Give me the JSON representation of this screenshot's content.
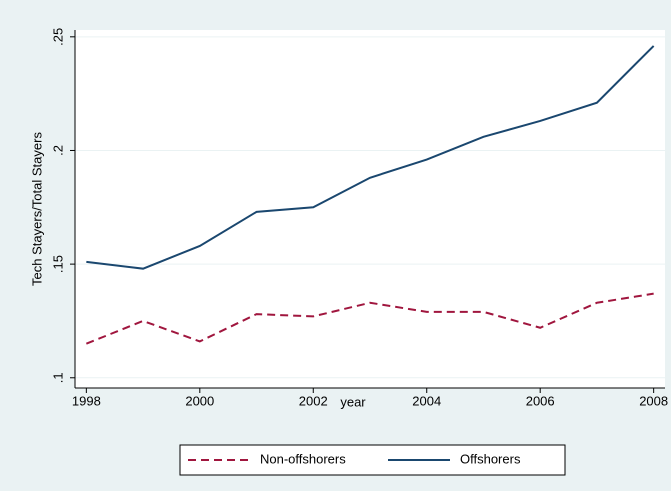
{
  "chart_data": {
    "type": "line",
    "x_label": "year",
    "y_label": "Tech Stayers/Total Stayers",
    "x": [
      1998,
      1999,
      2000,
      2001,
      2002,
      2003,
      2004,
      2005,
      2006,
      2007,
      2008
    ],
    "series": [
      {
        "name": "Non-offshorers",
        "color": "#a0163e",
        "dash": true,
        "values": [
          0.115,
          0.125,
          0.116,
          0.128,
          0.127,
          0.133,
          0.129,
          0.129,
          0.122,
          0.133,
          0.137
        ]
      },
      {
        "name": "Offshorers",
        "color": "#1a476f",
        "dash": false,
        "values": [
          0.151,
          0.148,
          0.158,
          0.173,
          0.175,
          0.188,
          0.196,
          0.206,
          0.213,
          0.221,
          0.246
        ]
      }
    ],
    "xlim": [
      1997.8,
      2008.2
    ],
    "ylim": [
      0.0955,
      0.253
    ],
    "xticks": [
      1998,
      2000,
      2002,
      2004,
      2006,
      2008
    ],
    "yticks": [
      {
        "value": 0.1,
        "label": ".1"
      },
      {
        "value": 0.15,
        "label": ".15"
      },
      {
        "value": 0.2,
        "label": ".2"
      },
      {
        "value": 0.25,
        "label": ".25"
      }
    ],
    "grid": true,
    "legend": "bottom"
  }
}
